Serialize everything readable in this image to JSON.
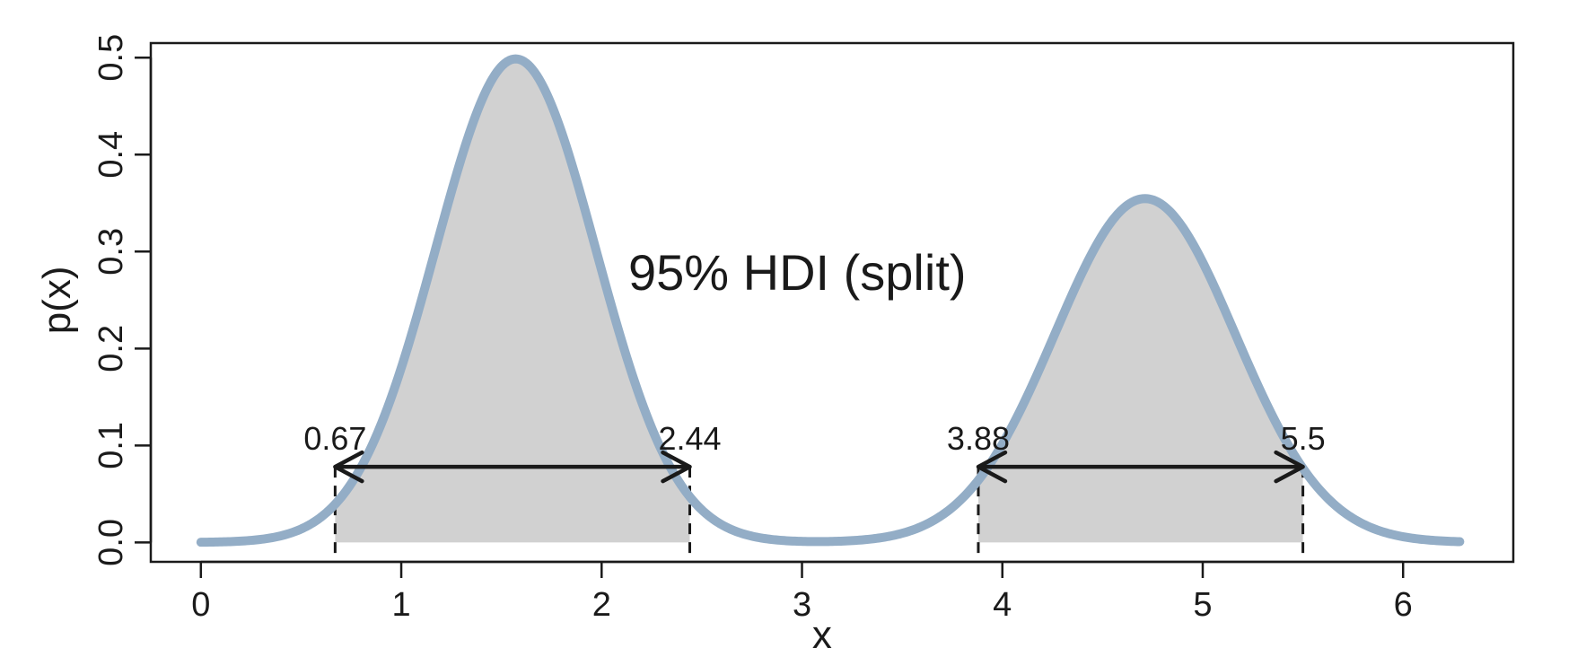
{
  "chart_data": {
    "type": "area",
    "title": "95% HDI (split)",
    "xlabel": "x",
    "ylabel": "p(x)",
    "xlim": [
      -0.25,
      6.55
    ],
    "ylim": [
      -0.02,
      0.515
    ],
    "x_ticks": [
      "0",
      "1",
      "2",
      "3",
      "4",
      "5",
      "6"
    ],
    "y_ticks": [
      "0.0",
      "0.1",
      "0.2",
      "0.3",
      "0.4",
      "0.5"
    ],
    "density": {
      "x_range": [
        0,
        6.283
      ],
      "components": [
        {
          "mean": 1.571,
          "sd": 0.4,
          "weight": 0.5
        },
        {
          "mean": 4.712,
          "sd": 0.45,
          "weight": 0.4
        }
      ]
    },
    "hdi_intervals": [
      {
        "lower": 0.67,
        "upper": 2.44,
        "lower_label": "0.67",
        "upper_label": "2.44",
        "height": 0.078
      },
      {
        "lower": 3.88,
        "upper": 5.5,
        "lower_label": "3.88",
        "upper_label": "5.5",
        "height": 0.078
      }
    ],
    "colors": {
      "curve": "#93adc6",
      "fill": "#d1d1d1",
      "arrow": "#1a1a1a"
    },
    "grid": false
  }
}
